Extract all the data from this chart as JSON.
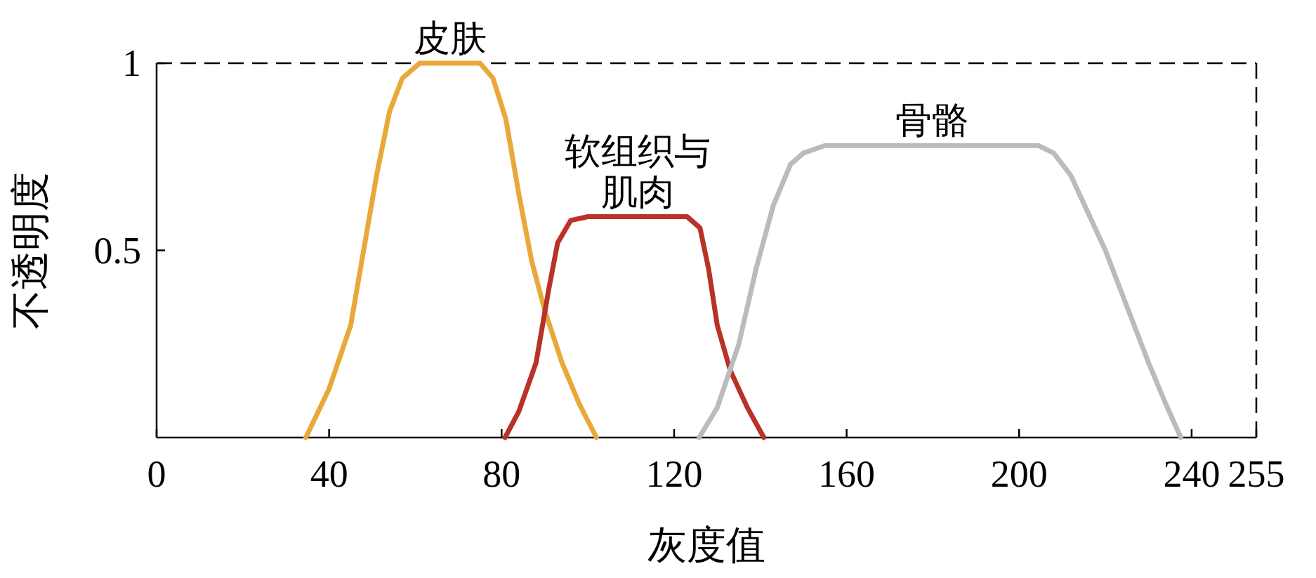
{
  "chart_data": {
    "type": "line",
    "xlabel": "灰度值",
    "ylabel": "不透明度",
    "xlim": [
      0,
      255
    ],
    "ylim": [
      0,
      1
    ],
    "xticks": [
      0,
      40,
      80,
      120,
      160,
      200,
      240,
      255
    ],
    "yticks": [
      0.5,
      1
    ],
    "grid": false,
    "marker": "none",
    "line_style": "solid",
    "ref_lines": [
      {
        "axis": "y",
        "value": 1,
        "color": "#000000",
        "line_style": "dashed"
      },
      {
        "axis": "x",
        "value": 255,
        "color": "#000000",
        "line_style": "dashed"
      }
    ],
    "series": [
      {
        "name": "皮肤",
        "color": "#e8a93a",
        "x": [
          34.6,
          40,
          45,
          48,
          51,
          54,
          57,
          61,
          75,
          78,
          81,
          84,
          87,
          90,
          94,
          98,
          102
        ],
        "values": [
          0,
          0.13,
          0.3,
          0.5,
          0.7,
          0.87,
          0.96,
          1,
          1,
          0.96,
          0.85,
          0.65,
          0.47,
          0.34,
          0.2,
          0.09,
          0
        ]
      },
      {
        "name": "软组织与肌肉",
        "color": "#b83228",
        "x": [
          80.8,
          84,
          88,
          91,
          93,
          96,
          100,
          123,
          126,
          128,
          130,
          133,
          137,
          140.8
        ],
        "values": [
          0,
          0.07,
          0.2,
          0.4,
          0.52,
          0.58,
          0.59,
          0.59,
          0.56,
          0.45,
          0.3,
          0.18,
          0.08,
          0
        ]
      },
      {
        "name": "骨骼",
        "color": "#bbbbbb",
        "x": [
          125.8,
          130,
          135,
          139,
          143,
          147,
          150,
          155,
          204.5,
          208,
          212,
          216,
          220,
          225,
          230,
          234,
          237.5
        ],
        "values": [
          0,
          0.08,
          0.25,
          0.45,
          0.62,
          0.73,
          0.76,
          0.78,
          0.78,
          0.76,
          0.7,
          0.6,
          0.5,
          0.35,
          0.2,
          0.09,
          0
        ]
      }
    ]
  }
}
